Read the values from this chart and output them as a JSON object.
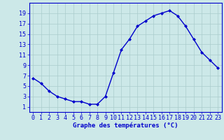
{
  "hours": [
    0,
    1,
    2,
    3,
    4,
    5,
    6,
    7,
    8,
    9,
    10,
    11,
    12,
    13,
    14,
    15,
    16,
    17,
    18,
    19,
    20,
    21,
    22,
    23
  ],
  "temps": [
    6.5,
    5.5,
    4.0,
    3.0,
    2.5,
    2.0,
    2.0,
    1.5,
    1.5,
    3.0,
    7.5,
    12.0,
    14.0,
    16.5,
    17.5,
    18.5,
    19.0,
    19.5,
    18.5,
    16.5,
    14.0,
    11.5,
    10.0,
    8.5
  ],
  "line_color": "#0000cc",
  "marker": "D",
  "marker_size": 2.0,
  "bg_color": "#cce8e8",
  "grid_color": "#aacccc",
  "axis_color": "#0000cc",
  "xlabel": "Graphe des températures (°C)",
  "xlabel_fontsize": 6.5,
  "ylabel_ticks": [
    1,
    3,
    5,
    7,
    9,
    11,
    13,
    15,
    17,
    19
  ],
  "xlim": [
    -0.5,
    23.5
  ],
  "ylim": [
    0,
    21
  ],
  "tick_fontsize": 6.0,
  "linewidth": 1.0
}
